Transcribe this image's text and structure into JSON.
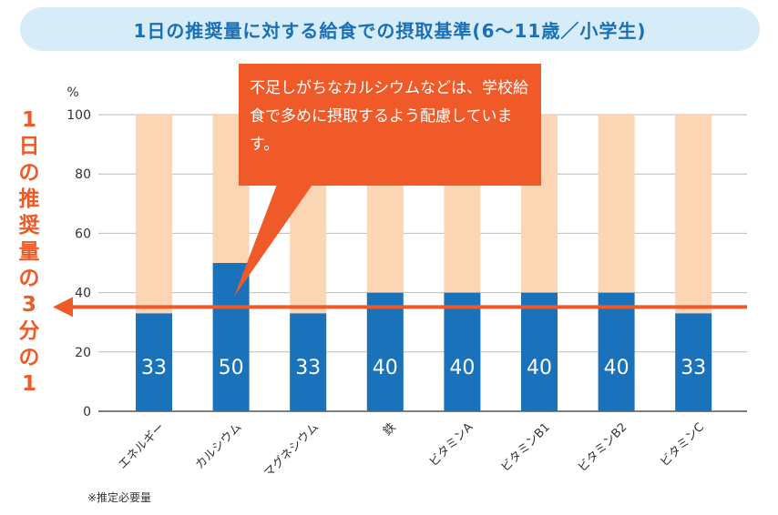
{
  "title": "1日の推奨量に対する給食での摂取基準(6～11歳／小学生)",
  "side_label": "1日の推奨量の3分の1",
  "callout": "不足しがちなカルシウムなどは、学校給食で多めに摂取するよう配慮しています。",
  "footnote": "※推定必要量",
  "colors": {
    "bar": "#1a72bb",
    "bar_background": "#fcd5b5",
    "accent": "#ef5a28",
    "title_text": "#1a6fb5",
    "title_background": "#d6ecf8"
  },
  "chart_data": {
    "type": "bar",
    "categories": [
      "エネルギー",
      "カルシウム",
      "マグネシウム",
      "鉄",
      "ビタミンA",
      "ビタミンB1",
      "ビタミンB2",
      "ビタミンC"
    ],
    "values": [
      33,
      50,
      33,
      40,
      40,
      40,
      40,
      33
    ],
    "background_value": 100,
    "value_labels": [
      "33",
      "50",
      "33",
      "40",
      "40",
      "40",
      "40",
      "33"
    ],
    "ylabel": "%",
    "ylim": [
      0,
      100
    ],
    "yticks": [
      0,
      20,
      40,
      60,
      80,
      100
    ],
    "reference_line": 33,
    "grid": true
  }
}
